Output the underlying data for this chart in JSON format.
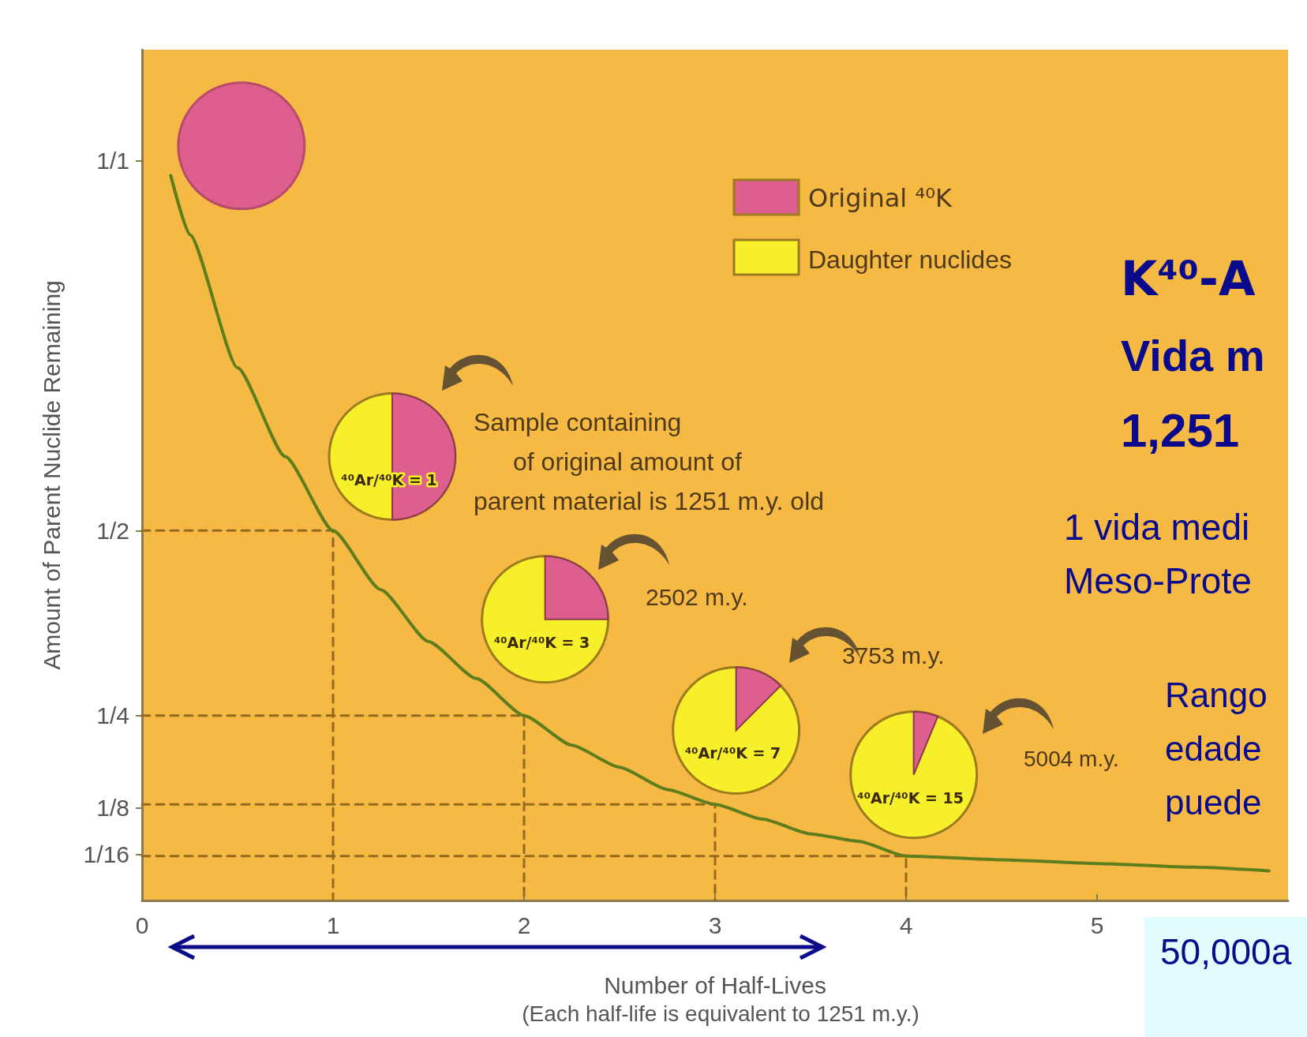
{
  "chart_data": {
    "type": "line",
    "xlabel": "Number of Half-Lives",
    "ylabel": "Amount of Parent Nuclide Remaining",
    "xlim": [
      0,
      6
    ],
    "xticks": [
      0,
      1,
      2,
      3,
      4,
      5
    ],
    "ylim": [
      0,
      1.15
    ],
    "yticks": [
      {
        "value": 0.0625,
        "label": "1/16"
      },
      {
        "value": 0.125,
        "label": "1/8"
      },
      {
        "value": 0.25,
        "label": "1/4"
      },
      {
        "value": 0.5,
        "label": "1/2"
      },
      {
        "value": 1,
        "label": "1/1"
      }
    ],
    "grid": false,
    "marker": "none",
    "series": [
      {
        "color": "#5e7d1c",
        "x": [
          0.15,
          0.25,
          0.5,
          0.75,
          1,
          1.25,
          1.5,
          1.75,
          2,
          2.25,
          2.5,
          2.75,
          3,
          3.25,
          3.5,
          3.75,
          4,
          4.5,
          5,
          5.5,
          5.9
        ],
        "values": [
          0.98,
          0.9,
          0.72,
          0.6,
          0.5,
          0.42,
          0.35,
          0.3,
          0.25,
          0.21,
          0.18,
          0.15,
          0.13,
          0.11,
          0.09,
          0.08,
          0.06,
          0.055,
          0.05,
          0.045,
          0.04
        ]
      },
      {
        "line_style": "dashed",
        "color": "#946a1c",
        "x": [
          0,
          1,
          1
        ],
        "values": [
          0.5,
          0.5,
          0
        ]
      },
      {
        "line_style": "dashed",
        "color": "#946a1c",
        "x": [
          0,
          2,
          2
        ],
        "values": [
          0.25,
          0.25,
          0
        ]
      },
      {
        "line_style": "dashed",
        "color": "#946a1c",
        "x": [
          0,
          3,
          3
        ],
        "values": [
          0.13,
          0.13,
          0
        ]
      },
      {
        "line_style": "dashed",
        "color": "#946a1c",
        "x": [
          0,
          4,
          4
        ],
        "values": [
          0.06,
          0.06,
          0
        ]
      }
    ],
    "annotations": [
      "Sample containing\nof original amount of\nparent material is 1251 m.y. old",
      "2502 m.y.",
      "3753 m.y.",
      "5004 m.y.",
      "⁴⁰Ar/⁴⁰K = 1",
      "⁴⁰Ar/⁴⁰K = 3",
      "⁴⁰Ar/⁴⁰K = 7",
      "⁴⁰Ar/⁴⁰K = 15",
      "Original ⁴⁰K",
      "Daughter nuclides",
      "(Each half-life is equivalent to 1251 m.y.)",
      "K⁴⁰-A",
      "Vida m",
      "1,251",
      "1 vida medi",
      "Meso-Prote",
      "Rango",
      "edade",
      "puede",
      "50,000a"
    ]
  }
}
